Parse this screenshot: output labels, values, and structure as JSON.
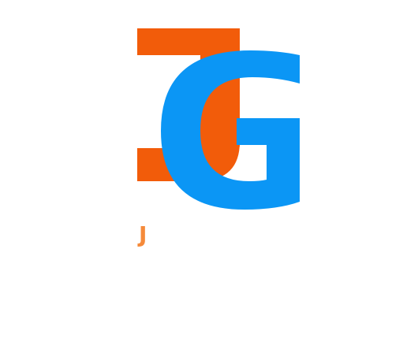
{
  "logo": {
    "letters": [
      "J",
      "G"
    ],
    "colors": {
      "j": "#f25c0a",
      "g": "#0b96f5"
    }
  },
  "caption": {
    "text": "J",
    "color": "#f58a3a"
  }
}
